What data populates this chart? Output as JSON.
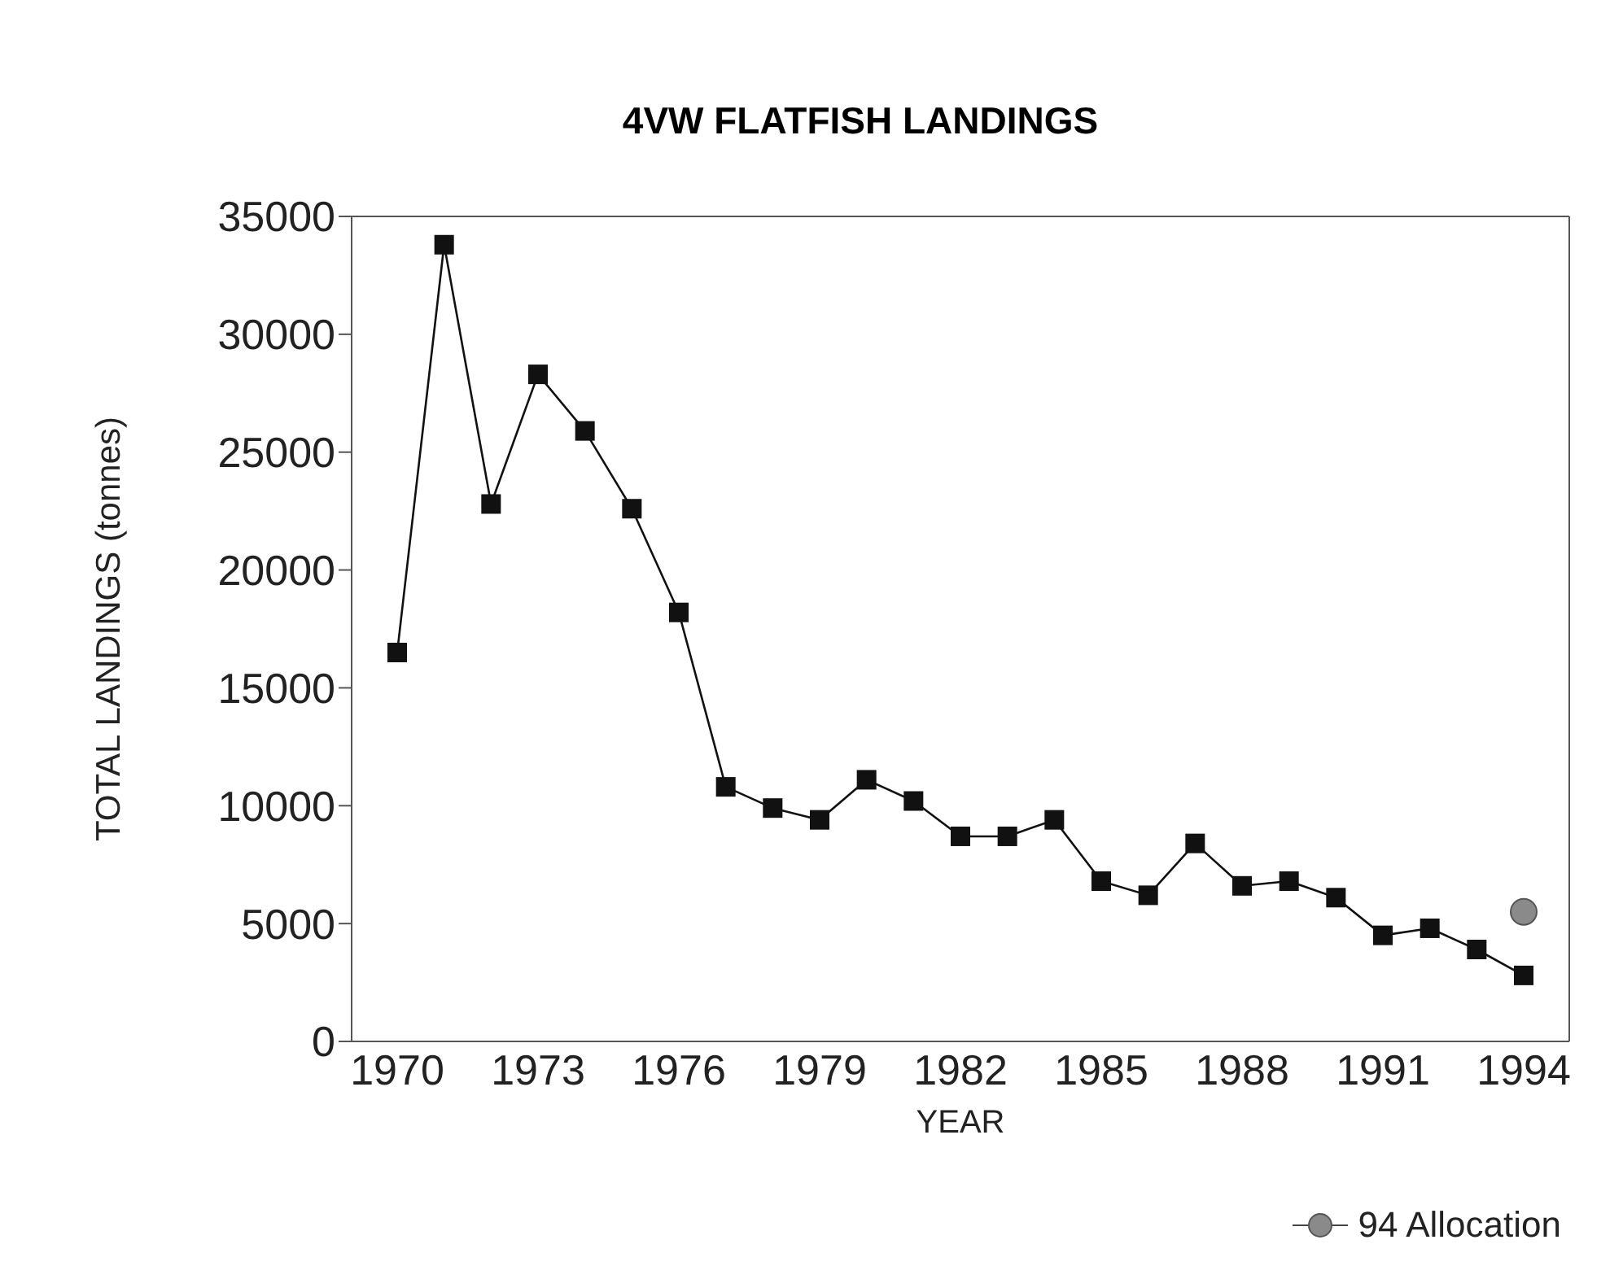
{
  "chart_data": {
    "type": "line",
    "title": "4VW FLATFISH LANDINGS",
    "xlabel": "YEAR",
    "ylabel": "TOTAL LANDINGS (tonnes)",
    "categories": [
      "1970",
      null,
      null,
      "1973",
      null,
      null,
      "1976",
      null,
      null,
      "1979",
      null,
      null,
      "1982",
      null,
      null,
      "1985",
      null,
      null,
      "1988",
      null,
      null,
      "1991",
      null,
      null,
      "1994"
    ],
    "series": [
      {
        "color": "#111111",
        "marker": "square",
        "values": [
          16500,
          33800,
          22800,
          28300,
          25900,
          22600,
          18200,
          10800,
          9900,
          9400,
          11100,
          10200,
          8700,
          8700,
          9400,
          6800,
          6200,
          8400,
          6600,
          6800,
          6100,
          4500,
          4800,
          3900,
          2800
        ]
      },
      {
        "name": "94 Allocation",
        "color": "#8a8a8a",
        "marker": "circle",
        "values": [
          null,
          null,
          null,
          null,
          null,
          null,
          null,
          null,
          null,
          null,
          null,
          null,
          null,
          null,
          null,
          null,
          null,
          null,
          null,
          null,
          null,
          null,
          null,
          null,
          5500
        ]
      }
    ],
    "ylim": [
      0,
      35000
    ],
    "yticks": [
      0,
      5000,
      10000,
      15000,
      20000,
      25000,
      30000,
      35000
    ],
    "grid": false,
    "legend": "bottom right"
  }
}
